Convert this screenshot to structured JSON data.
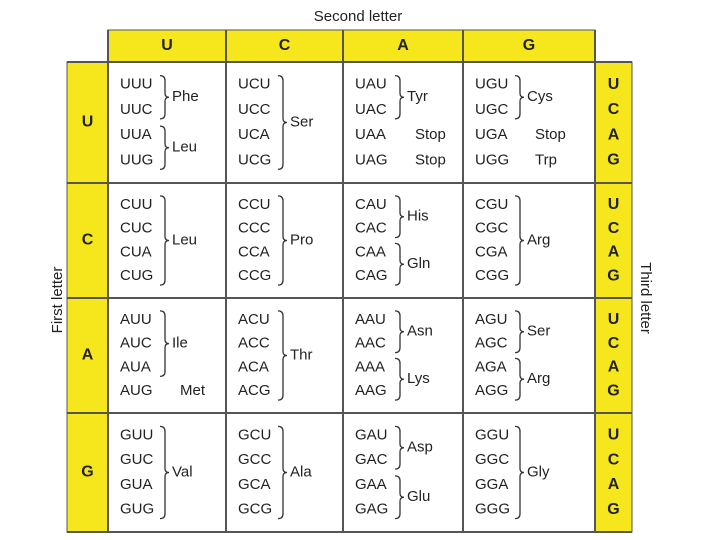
{
  "title": "Second letter",
  "left_label": "First letter",
  "right_label": "Third letter",
  "columns": [
    "U",
    "C",
    "A",
    "G"
  ],
  "rows": [
    {
      "letter": "U",
      "third": [
        "U",
        "C",
        "A",
        "G"
      ],
      "cells": [
        [
          {
            "codons": [
              "UUU",
              "UUC"
            ],
            "amino": "Phe"
          },
          {
            "codons": [
              "UUA",
              "UUG"
            ],
            "amino": "Leu"
          }
        ],
        [
          {
            "codons": [
              "UCU",
              "UCC",
              "UCA",
              "UCG"
            ],
            "amino": "Ser"
          }
        ],
        [
          {
            "codons": [
              "UAU",
              "UAC"
            ],
            "amino": "Tyr"
          },
          {
            "codons": [
              "UAA"
            ],
            "amino": "Stop"
          },
          {
            "codons": [
              "UAG"
            ],
            "amino": "Stop"
          }
        ],
        [
          {
            "codons": [
              "UGU",
              "UGC"
            ],
            "amino": "Cys"
          },
          {
            "codons": [
              "UGA"
            ],
            "amino": "Stop"
          },
          {
            "codons": [
              "UGG"
            ],
            "amino": "Trp"
          }
        ]
      ]
    },
    {
      "letter": "C",
      "third": [
        "U",
        "C",
        "A",
        "G"
      ],
      "cells": [
        [
          {
            "codons": [
              "CUU",
              "CUC",
              "CUA",
              "CUG"
            ],
            "amino": "Leu"
          }
        ],
        [
          {
            "codons": [
              "CCU",
              "CCC",
              "CCA",
              "CCG"
            ],
            "amino": "Pro"
          }
        ],
        [
          {
            "codons": [
              "CAU",
              "CAC"
            ],
            "amino": "His"
          },
          {
            "codons": [
              "CAA",
              "CAG"
            ],
            "amino": "Gln"
          }
        ],
        [
          {
            "codons": [
              "CGU",
              "CGC",
              "CGA",
              "CGG"
            ],
            "amino": "Arg"
          }
        ]
      ]
    },
    {
      "letter": "A",
      "third": [
        "U",
        "C",
        "A",
        "G"
      ],
      "cells": [
        [
          {
            "codons": [
              "AUU",
              "AUC",
              "AUA"
            ],
            "amino": "Ile"
          },
          {
            "codons": [
              "AUG"
            ],
            "amino": "Met"
          }
        ],
        [
          {
            "codons": [
              "ACU",
              "ACC",
              "ACA",
              "ACG"
            ],
            "amino": "Thr"
          }
        ],
        [
          {
            "codons": [
              "AAU",
              "AAC"
            ],
            "amino": "Asn"
          },
          {
            "codons": [
              "AAA",
              "AAG"
            ],
            "amino": "Lys"
          }
        ],
        [
          {
            "codons": [
              "AGU",
              "AGC"
            ],
            "amino": "Ser"
          },
          {
            "codons": [
              "AGA",
              "AGG"
            ],
            "amino": "Arg"
          }
        ]
      ]
    },
    {
      "letter": "G",
      "third": [
        "U",
        "C",
        "A",
        "G"
      ],
      "cells": [
        [
          {
            "codons": [
              "GUU",
              "GUC",
              "GUA",
              "GUG"
            ],
            "amino": "Val"
          }
        ],
        [
          {
            "codons": [
              "GCU",
              "GCC",
              "GCA",
              "GCG"
            ],
            "amino": "Ala"
          }
        ],
        [
          {
            "codons": [
              "GAU",
              "GAC"
            ],
            "amino": "Asp"
          },
          {
            "codons": [
              "GAA",
              "GAG"
            ],
            "amino": "Glu"
          }
        ],
        [
          {
            "codons": [
              "GGU",
              "GGC",
              "GGA",
              "GGG"
            ],
            "amino": "Gly"
          }
        ]
      ]
    }
  ]
}
